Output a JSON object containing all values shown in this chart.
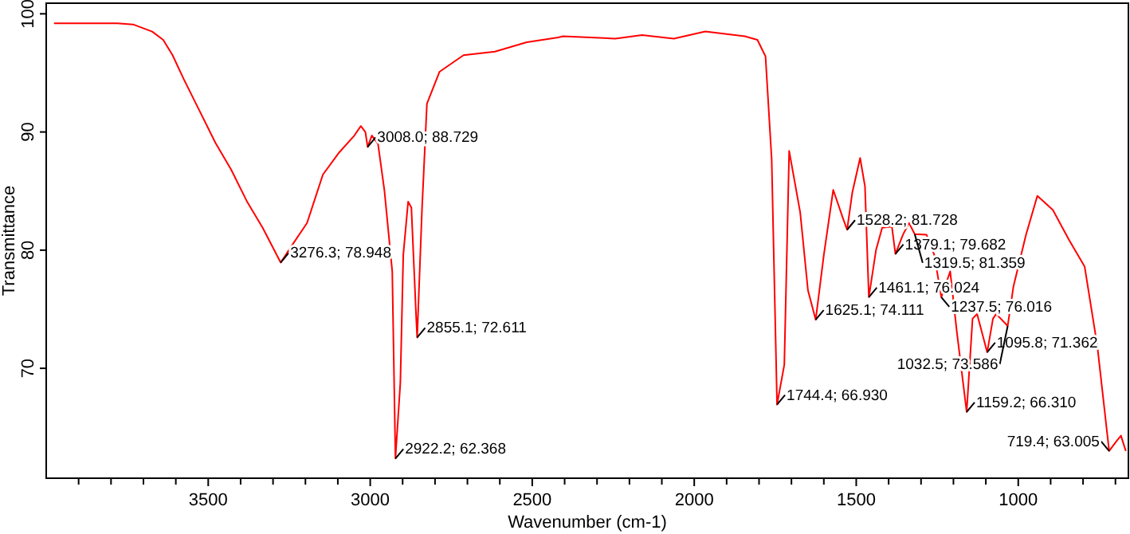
{
  "chart_data": {
    "type": "line",
    "xlabel": "Wavenumber (cm-1)",
    "ylabel": "Transmittance",
    "xlim": [
      4000,
      660
    ],
    "ylim": [
      60.7,
      100.9
    ],
    "xticks": [
      {
        "value": 3900,
        "label": null
      },
      {
        "value": 3800,
        "label": null
      },
      {
        "value": 3700,
        "label": null
      },
      {
        "value": 3600,
        "label": null
      },
      3500,
      {
        "value": 3400,
        "label": null
      },
      {
        "value": 3300,
        "label": null
      },
      {
        "value": 3200,
        "label": null
      },
      {
        "value": 3100,
        "label": null
      },
      3000,
      {
        "value": 2900,
        "label": null
      },
      {
        "value": 2800,
        "label": null
      },
      {
        "value": 2700,
        "label": null
      },
      {
        "value": 2600,
        "label": null
      },
      2500,
      {
        "value": 2400,
        "label": null
      },
      {
        "value": 2300,
        "label": null
      },
      {
        "value": 2200,
        "label": null
      },
      {
        "value": 2100,
        "label": null
      },
      2000,
      {
        "value": 1900,
        "label": null
      },
      {
        "value": 1800,
        "label": null
      },
      {
        "value": 1700,
        "label": null
      },
      {
        "value": 1600,
        "label": null
      },
      1500,
      {
        "value": 1400,
        "label": null
      },
      {
        "value": 1300,
        "label": null
      },
      {
        "value": 1200,
        "label": null
      },
      {
        "value": 1100,
        "label": null
      },
      1000,
      {
        "value": 900,
        "label": null
      },
      {
        "value": 800,
        "label": null
      },
      {
        "value": 700,
        "label": null
      }
    ],
    "yticks": [
      70,
      80,
      90,
      100
    ],
    "grid": false,
    "marker": "none",
    "line_style": "solid",
    "series": [
      {
        "color": "#ff0000",
        "x": [
          3976,
          3780,
          3732,
          3673,
          3639,
          3610,
          3576,
          3527,
          3478,
          3429,
          3380,
          3332,
          3276.3,
          3244,
          3195,
          3146,
          3098,
          3049,
          3029,
          3015,
          3008,
          2995,
          2976,
          2956,
          2932,
          2922.2,
          2907,
          2898,
          2883,
          2873,
          2858,
          2855.1,
          2840,
          2825,
          2786,
          2712,
          2615,
          2517,
          2420,
          2405,
          2244,
          2161,
          2063,
          1966,
          1844,
          1805,
          1780,
          1761,
          1744.4,
          1722,
          1707,
          1673,
          1649,
          1625.1,
          1600,
          1571,
          1541,
          1528.2,
          1512,
          1488,
          1473,
          1461.1,
          1439,
          1420,
          1390,
          1379.1,
          1356,
          1337,
          1319.5,
          1283,
          1259,
          1237.5,
          1210,
          1190,
          1159.2,
          1141,
          1127,
          1095.8,
          1078,
          1068,
          1032.5,
          1015,
          976,
          941,
          893,
          844,
          795,
          756,
          719.4,
          698,
          683,
          668
        ],
        "values": [
          99.2,
          99.2,
          99.1,
          98.5,
          97.8,
          96.5,
          94.5,
          91.8,
          89.1,
          86.8,
          84.1,
          81.9,
          78.948,
          80.3,
          82.3,
          86.4,
          88.2,
          89.7,
          90.5,
          90,
          88.729,
          89.7,
          89,
          85,
          78.2,
          62.368,
          68.8,
          79.6,
          84.1,
          83.6,
          74.2,
          72.611,
          83.6,
          92.4,
          95.1,
          96.5,
          96.8,
          97.6,
          98,
          98.1,
          97.9,
          98.2,
          97.9,
          98.5,
          98.1,
          97.8,
          96.4,
          87.7,
          66.93,
          70.3,
          88.4,
          83.2,
          76.6,
          74.111,
          79.6,
          85.1,
          82.7,
          81.728,
          84.9,
          87.8,
          85.4,
          76.024,
          80,
          81.9,
          82,
          79.682,
          81.3,
          82.3,
          81.359,
          81.3,
          79.6,
          76.016,
          78.2,
          73.2,
          66.31,
          74.2,
          74.6,
          71.362,
          74.2,
          74.6,
          73.586,
          76.9,
          81.3,
          84.6,
          83.4,
          80.9,
          78.6,
          71.9,
          63.005,
          63.8,
          64.3,
          63
        ]
      }
    ],
    "annotations": [
      {
        "text": "3276.3; 78.948",
        "x": 3276.3,
        "y": 78.948
      },
      {
        "text": "3008.0; 88.729",
        "x": 3008,
        "y": 88.729
      },
      {
        "text": "2922.2; 62.368",
        "x": 2922.2,
        "y": 62.368
      },
      {
        "text": "2855.1; 72.611",
        "x": 2855.1,
        "y": 72.611
      },
      {
        "text": "1744.4; 66.930",
        "x": 1744.4,
        "y": 66.93
      },
      {
        "text": "1625.1; 74.111",
        "x": 1625.1,
        "y": 74.111
      },
      {
        "text": "1528.2; 81.728",
        "x": 1528.2,
        "y": 81.728
      },
      {
        "text": "1461.1; 76.024",
        "x": 1461.1,
        "y": 76.024
      },
      {
        "text": "1379.1; 79.682",
        "x": 1379.1,
        "y": 79.682
      },
      {
        "text": "1319.5; 81.359",
        "x": 1319.5,
        "y": 81.359
      },
      {
        "text": "1237.5; 76.016",
        "x": 1237.5,
        "y": 76.016
      },
      {
        "text": "1159.2; 66.310",
        "x": 1159.2,
        "y": 66.31
      },
      {
        "text": "1095.8; 71.362",
        "x": 1095.8,
        "y": 71.362
      },
      {
        "text": "1032.5; 73.586",
        "x": 1032.5,
        "y": 73.586
      },
      {
        "text": "719.4; 63.005",
        "x": 719.4,
        "y": 63.005
      }
    ]
  }
}
